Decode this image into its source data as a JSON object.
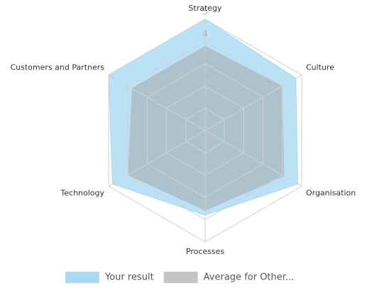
{
  "chart_data": {
    "type": "radar",
    "categories": [
      "Strategy",
      "Culture",
      "Organisation",
      "Processes",
      "Technology",
      "Customers and Partners"
    ],
    "series": [
      {
        "name": "Your result",
        "color": "#a9d9f3",
        "values": [
          5,
          4.7,
          4.8,
          3.8,
          4.8,
          5
        ]
      },
      {
        "name": "Average for Other...",
        "color": "#9e9e9e",
        "values": [
          3.8,
          4,
          4.1,
          3.6,
          4,
          3.8
        ]
      }
    ],
    "rlim": [
      0,
      5
    ],
    "rticks": [
      1,
      2,
      3,
      4,
      5
    ],
    "grid": true,
    "legend": "bottom"
  }
}
